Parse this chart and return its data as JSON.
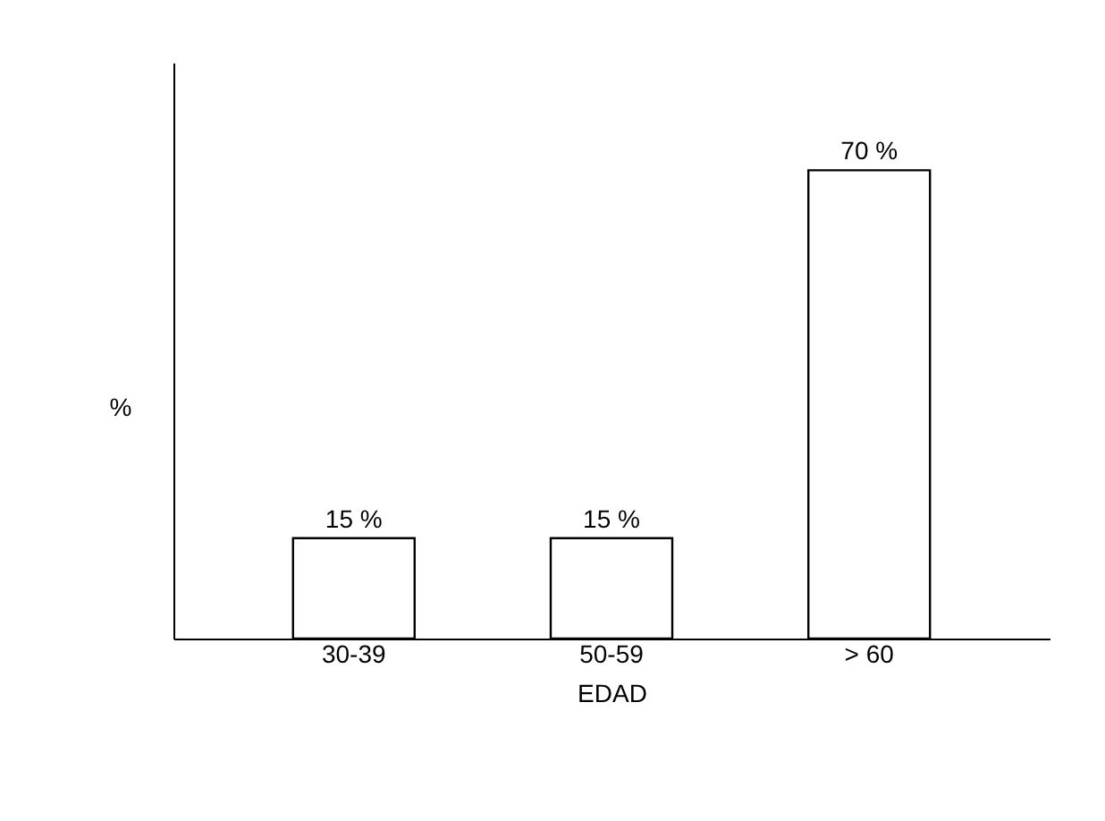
{
  "chart_data": {
    "type": "bar",
    "categories": [
      "30-39",
      "50-59",
      "> 60"
    ],
    "values": [
      15,
      15,
      70
    ],
    "value_labels": [
      "15 %",
      "15 %",
      "70 %"
    ],
    "color": "#ffffff",
    "xlabel": "EDAD",
    "ylabel": "%",
    "tick_labels": "x",
    "grid": false
  }
}
